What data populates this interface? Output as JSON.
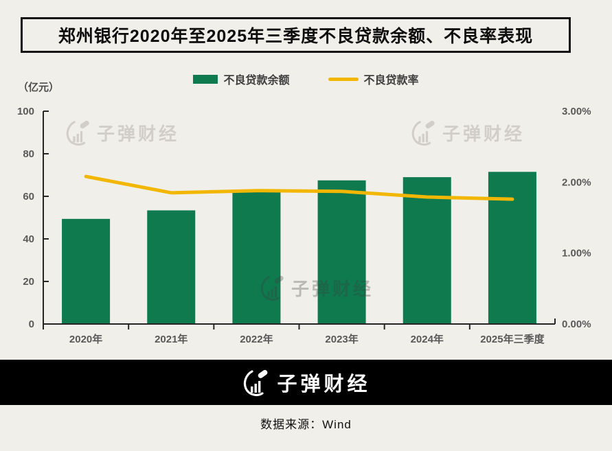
{
  "title": "郑州银行2020年至2025年三季度不良贷款余额、不良率表现",
  "unit_label": "（亿元）",
  "watermark_text": "子弹财经",
  "footer": {
    "logo_text": "子弹财经",
    "source": "数据来源：Wind"
  },
  "colors": {
    "bar_green": "#0e7a4e",
    "line_yellow": "#f2b705",
    "axis_line": "#262626",
    "tick_text": "#595959",
    "background": "#f1efe9"
  },
  "chart_data": {
    "type": "bar",
    "subtype": "bar+line combo, dual axis",
    "categories": [
      "2020年",
      "2021年",
      "2022年",
      "2023年",
      "2024年",
      "2025年三季度"
    ],
    "series": [
      {
        "name": "不良贷款余额",
        "type": "bar",
        "axis": "left",
        "color": "#0e7a4e",
        "values": [
          49.4,
          53.4,
          62.0,
          67.5,
          69.0,
          71.5
        ]
      },
      {
        "name": "不良贷款率",
        "type": "line",
        "axis": "right",
        "color": "#f2b705",
        "values": [
          2.08,
          1.85,
          1.88,
          1.87,
          1.79,
          1.76
        ]
      }
    ],
    "left_axis": {
      "label": "（亿元）",
      "min": 0,
      "max": 100,
      "ticks": [
        0,
        20,
        40,
        60,
        80,
        100
      ]
    },
    "right_axis": {
      "min": 0,
      "max": 3,
      "tick_labels": [
        "0.00%",
        "1.00%",
        "2.00%",
        "3.00%"
      ]
    },
    "grid": false,
    "legend_position": "top"
  }
}
